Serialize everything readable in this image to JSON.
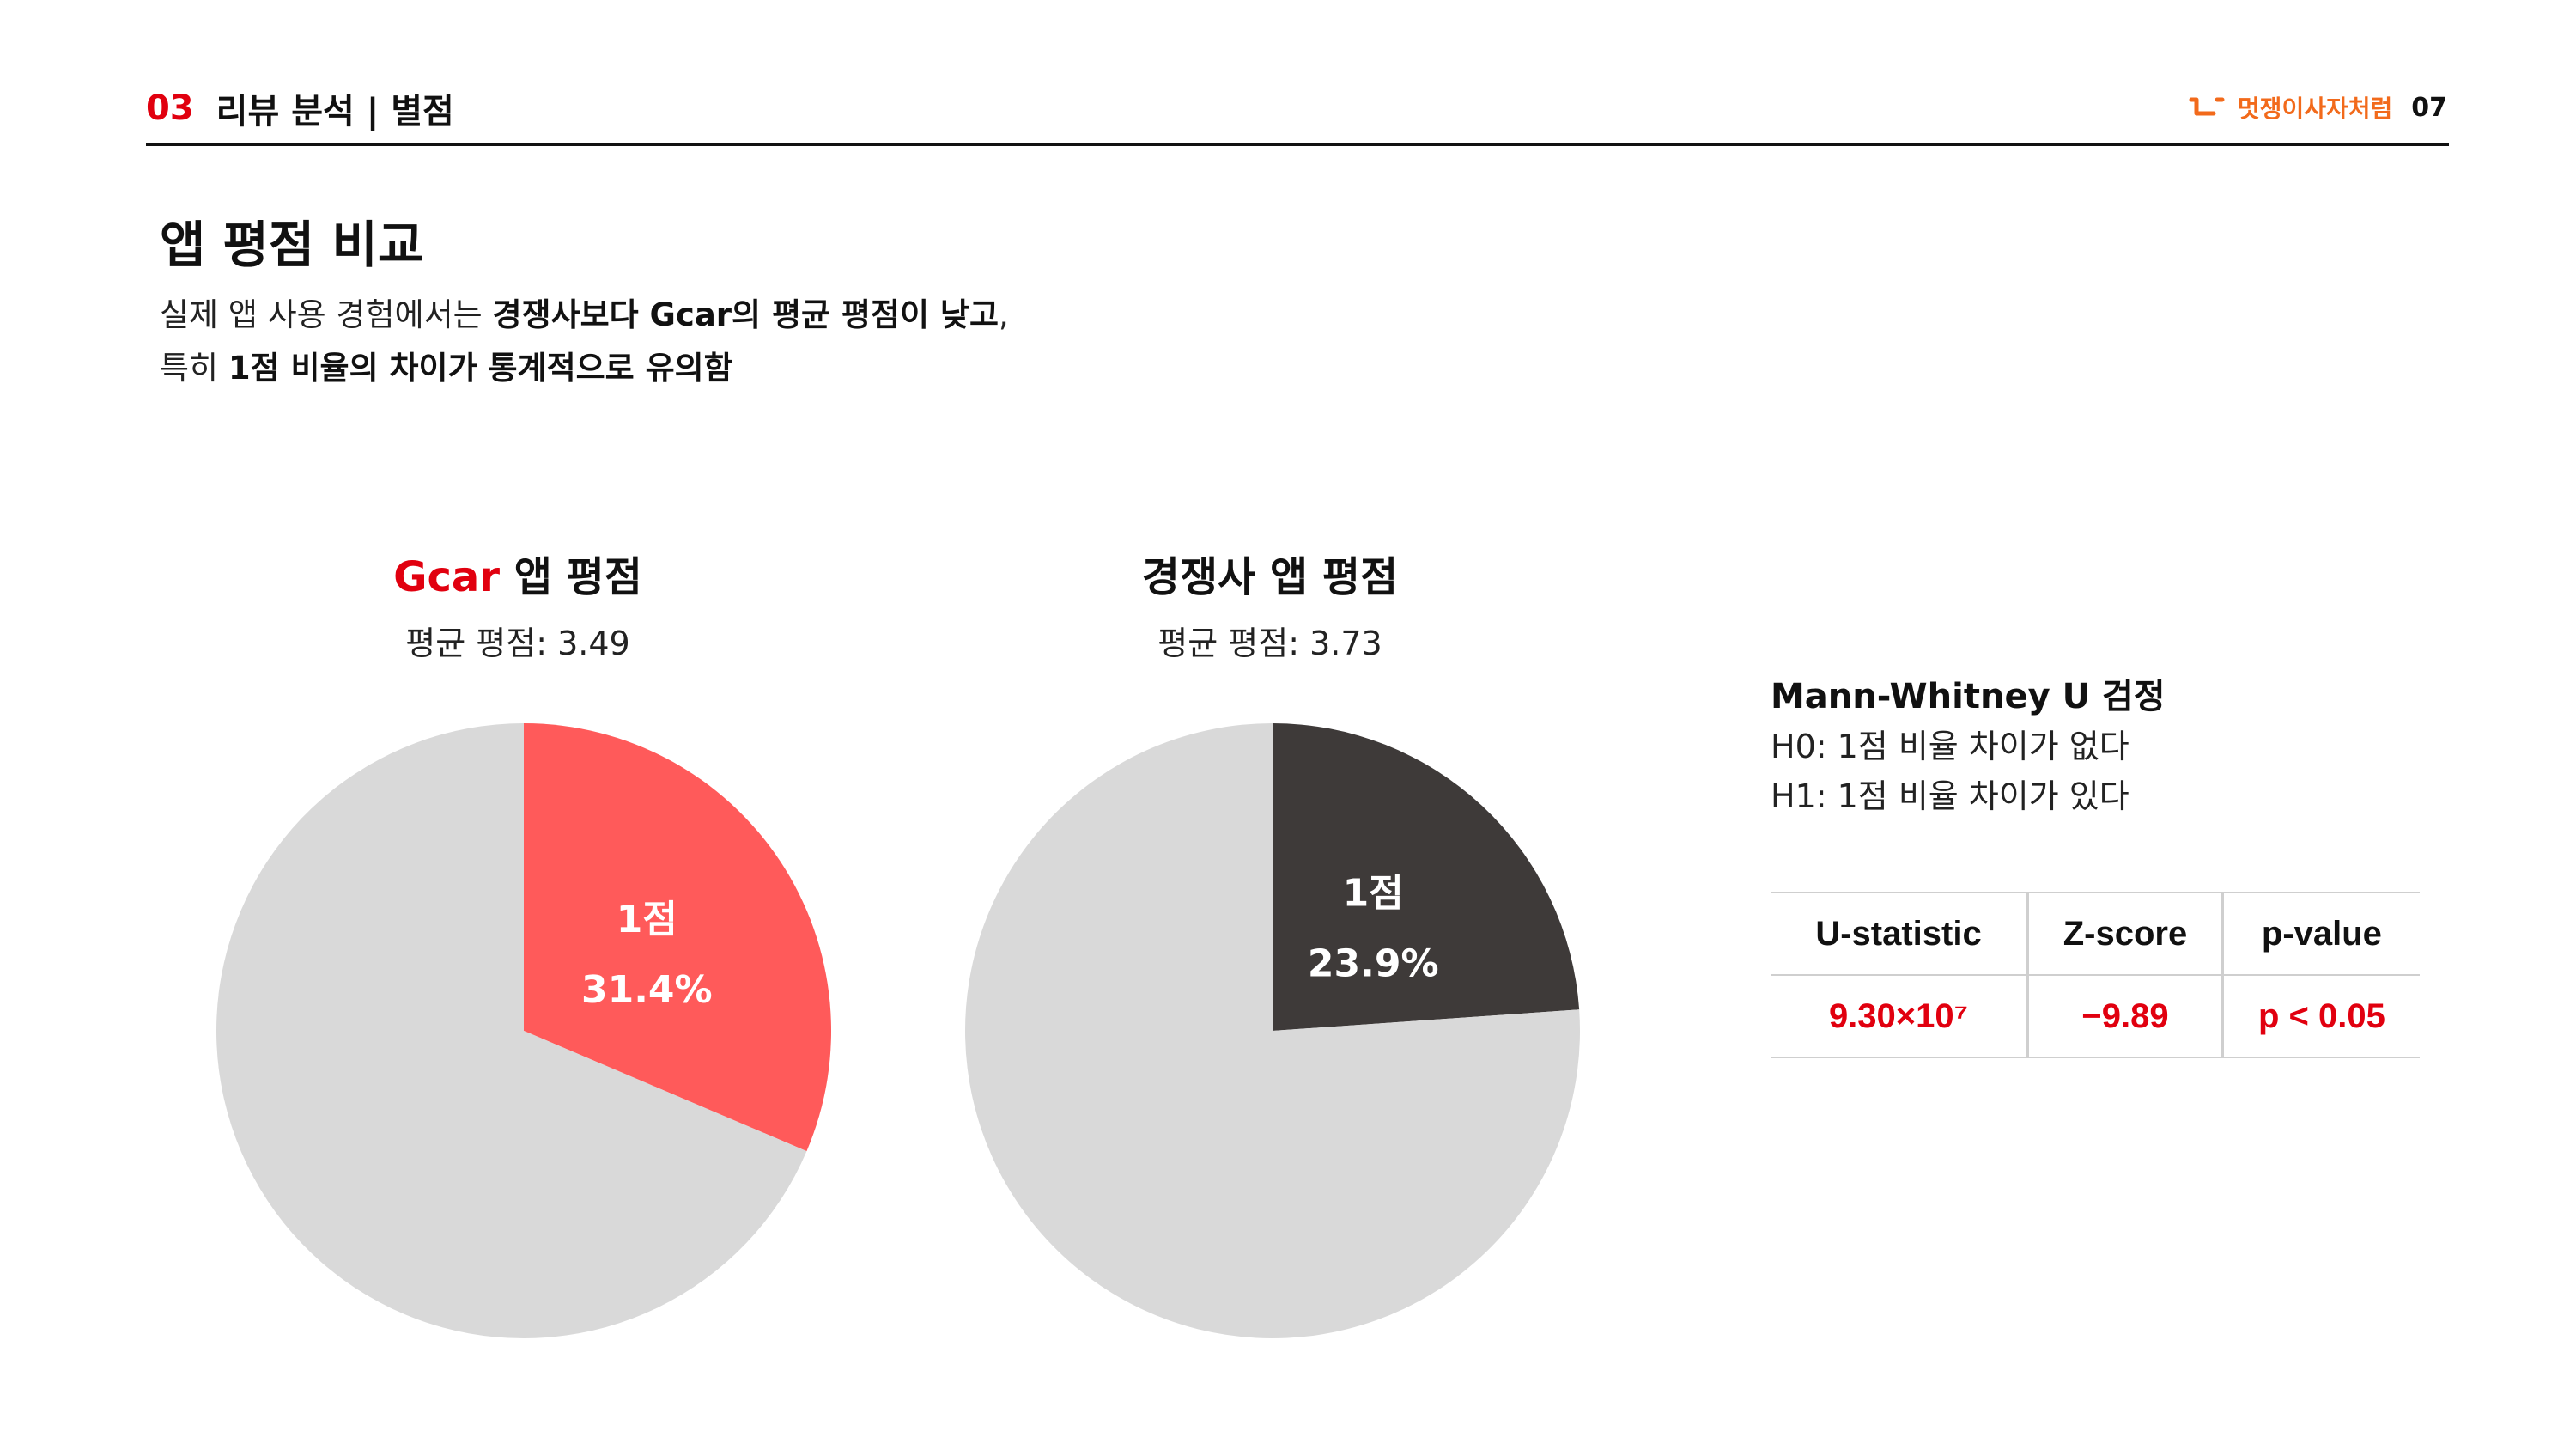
{
  "header": {
    "section_number": "03",
    "section_title": "리뷰 분석 | 별점",
    "brand": "멋쟁이사자처럼",
    "page_number": "07"
  },
  "title": "앱 평점 비교",
  "lead": {
    "line1_plain": "실제 앱 사용 경험에서는 ",
    "line1_bold": "경쟁사보다 Gcar의 평균 평점이 낮고",
    "line1_end": ",",
    "line2_plain": "특히 ",
    "line2_bold": "1점 비율의 차이가 통계적으로 유의함"
  },
  "charts": {
    "gcar": {
      "title_brand": "Gcar",
      "title_rest": " 앱 평점",
      "subtitle": "평균 평점: 3.49"
    },
    "competitor": {
      "title": "경쟁사 앱 평점",
      "subtitle": "평균 평점: 3.73"
    }
  },
  "chart_data": [
    {
      "type": "pie",
      "title": "Gcar 앱 평점",
      "subtitle": "평균 평점: 3.49",
      "slices": [
        {
          "label": "1점",
          "value": 31.4,
          "value_label": "31.4%",
          "color": "#FF5A5A"
        },
        {
          "label": "",
          "value": 68.6,
          "color": "#D9D9D9"
        }
      ]
    },
    {
      "type": "pie",
      "title": "경쟁사 앱 평점",
      "subtitle": "평균 평점: 3.73",
      "slices": [
        {
          "label": "1점",
          "value": 23.9,
          "value_label": "23.9%",
          "color": "#3E3A39"
        },
        {
          "label": "",
          "value": 76.1,
          "color": "#D9D9D9"
        }
      ]
    }
  ],
  "test": {
    "title": "Mann-Whitney U 검정",
    "h0": "H0: 1점 비율 차이가 없다",
    "h1": "H1: 1점 비율 차이가 있다",
    "columns": [
      "U-statistic",
      "Z-score",
      "p-value"
    ],
    "values": [
      "9.30×10⁷",
      "−9.89",
      "p < 0.05"
    ]
  },
  "colors": {
    "accent_red": "#E1000F",
    "brand_orange": "#F26A1B",
    "gcar_slice": "#FF5A5A",
    "competitor_slice": "#3E3A39",
    "rest_slice": "#D9D9D9"
  }
}
